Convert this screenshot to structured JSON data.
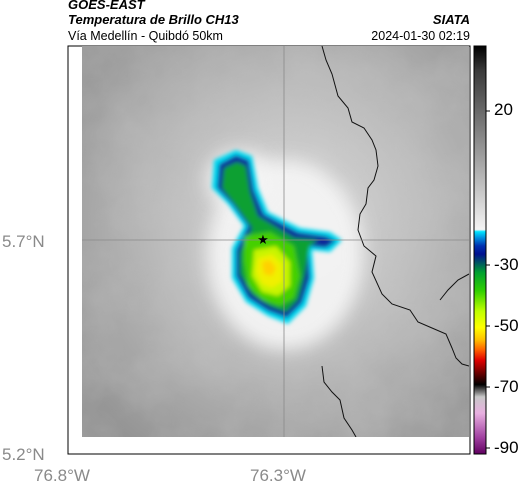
{
  "header": {
    "satellite": "GOES-EAST",
    "product": "Temperatura de Brillo CH13",
    "region": "Vía Medellín - Quibdó 50km",
    "agency": "SIATA",
    "timestamp": "2024-01-30 02:19"
  },
  "axes": {
    "lat_ticks": [
      {
        "label": "5.7°N",
        "value": 5.7
      },
      {
        "label": "5.2°N",
        "value": 5.2
      }
    ],
    "lon_ticks": [
      {
        "label": "76.8°W",
        "value": -76.8
      },
      {
        "label": "76.3°W",
        "value": -76.3
      }
    ]
  },
  "colorbar": {
    "ticks": [
      {
        "label": "20",
        "value": 20
      },
      {
        "label": "-30",
        "value": -30
      },
      {
        "label": "-50",
        "value": -50
      },
      {
        "label": "-70",
        "value": -70
      },
      {
        "label": "-90",
        "value": -90
      }
    ]
  },
  "map": {
    "marker": "star-icon"
  }
}
